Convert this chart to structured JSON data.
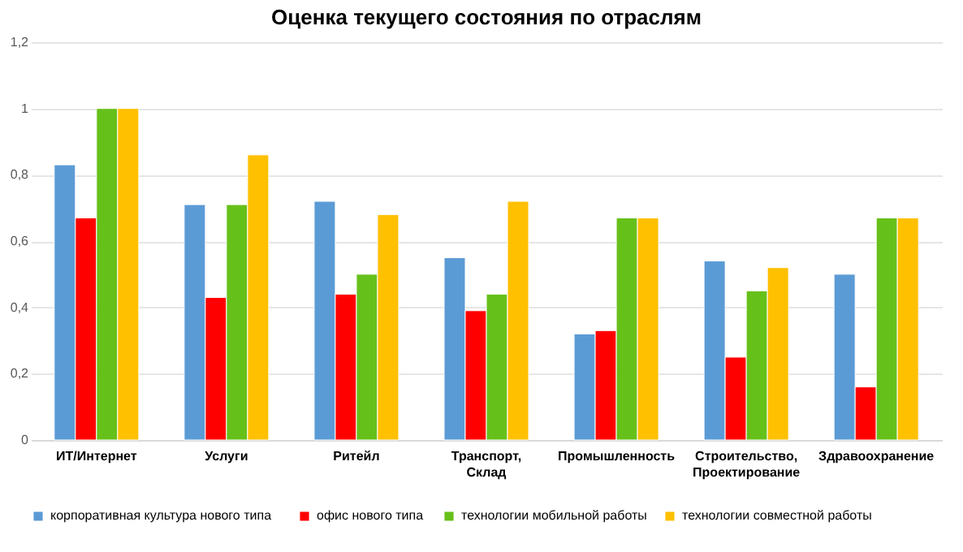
{
  "chart_data": {
    "type": "bar",
    "title": "Оценка текущего состояния по отраслям",
    "categories": [
      "ИТ/Интернет",
      "Услуги",
      "Ритейл",
      "Транспорт,  Склад",
      "Промышленность",
      "Строительство, Проектирование",
      "Здравоохранение"
    ],
    "series": [
      {
        "name": "корпоративная  культура  нового  типа",
        "color": "#5b9bd5",
        "values": [
          0.83,
          0.71,
          0.72,
          0.55,
          0.32,
          0.54,
          0.5
        ]
      },
      {
        "name": "офис нового  типа",
        "color": "#ff0000",
        "values": [
          0.67,
          0.43,
          0.44,
          0.39,
          0.33,
          0.25,
          0.16
        ]
      },
      {
        "name": "технологии мобильной работы",
        "color": "#66c01a",
        "values": [
          1.0,
          0.71,
          0.5,
          0.44,
          0.67,
          0.45,
          0.67
        ]
      },
      {
        "name": "технологии совместной работы",
        "color": "#ffc000",
        "values": [
          1.0,
          0.86,
          0.68,
          0.72,
          0.67,
          0.52,
          0.67
        ]
      }
    ],
    "ylim": [
      0,
      1.2
    ],
    "yticks": [
      0,
      {
        "value": 0.2,
        "label": "0,2"
      },
      {
        "value": 0.4,
        "label": "0,4"
      },
      {
        "value": 0.6,
        "label": "0,6"
      },
      {
        "value": 0.8,
        "label": "0,8"
      },
      1,
      {
        "value": 1.2,
        "label": "1,2"
      }
    ],
    "grid": "y",
    "legend": "bottom"
  }
}
